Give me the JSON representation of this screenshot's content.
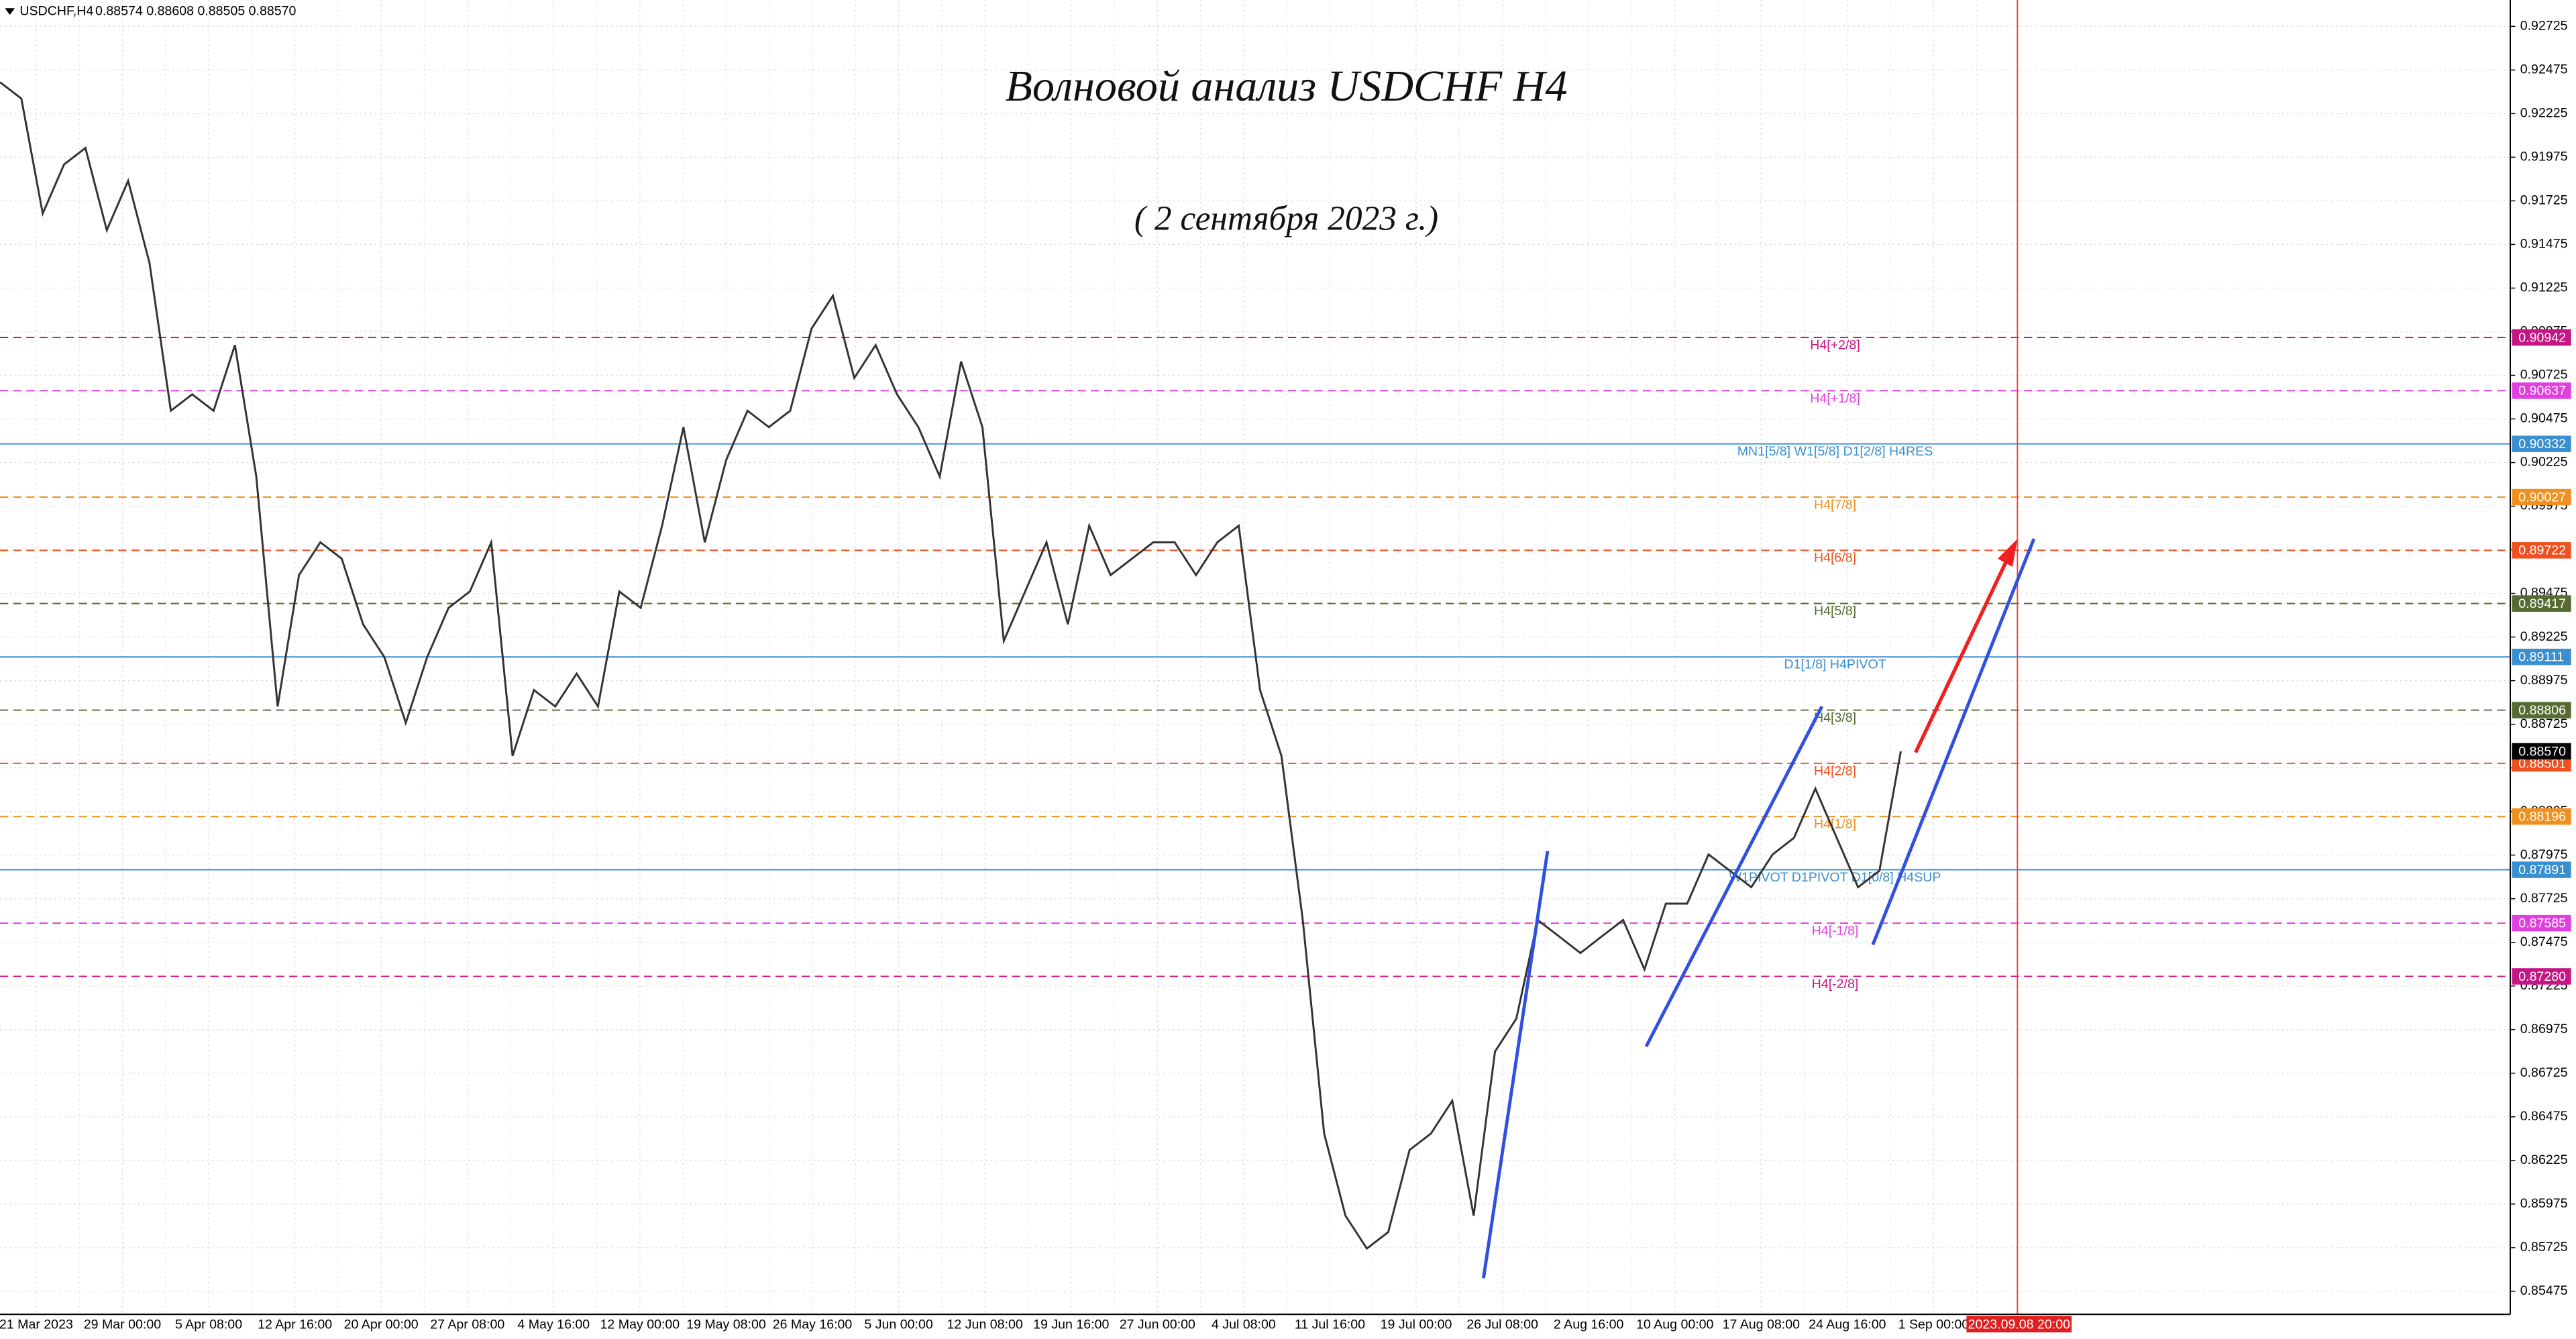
{
  "chart_data": {
    "type": "line",
    "symbol": "USDCHF,H4",
    "quote": "0.88574 0.88608 0.88505 0.88570",
    "title": "Волновой анализ USDCHF H4",
    "subtitle": "( 2 сентября 2023 г.)",
    "color": "#333333",
    "values": [
      0.92405,
      0.92311,
      0.91652,
      0.91934,
      0.92028,
      0.91557,
      0.9184,
      0.91369,
      0.90522,
      0.90616,
      0.90522,
      0.90898,
      0.90145,
      0.88827,
      0.8958,
      0.89768,
      0.89674,
      0.89298,
      0.89109,
      0.88733,
      0.89109,
      0.89392,
      0.89486,
      0.89768,
      0.88544,
      0.88921,
      0.88827,
      0.89015,
      0.88827,
      0.89486,
      0.89392,
      0.89863,
      0.90428,
      0.89768,
      0.90239,
      0.90522,
      0.90428,
      0.90522,
      0.90993,
      0.91181,
      0.9071,
      0.90898,
      0.90616,
      0.90428,
      0.90145,
      0.90804,
      0.90428,
      0.89203,
      0.89486,
      0.89768,
      0.89298,
      0.89863,
      0.8958,
      0.89674,
      0.89768,
      0.89768,
      0.8958,
      0.89768,
      0.89863,
      0.88921,
      0.88544,
      0.87603,
      0.86379,
      0.85908,
      0.8572,
      0.85814,
      0.86285,
      0.86379,
      0.86567,
      0.85908,
      0.86849,
      0.87038,
      0.87603,
      0.87509,
      0.87414,
      0.87509,
      0.87603,
      0.8732,
      0.87697,
      0.87697,
      0.87979,
      0.87885,
      0.87791,
      0.87979,
      0.88074,
      0.88356,
      0.88074,
      0.87791,
      0.87885,
      0.8857
    ],
    "xlabels": [
      "21 Mar 2023",
      "29 Mar 00:00",
      "5 Apr 08:00",
      "12 Apr 16:00",
      "20 Apr 00:00",
      "27 Apr 08:00",
      "4 May 16:00",
      "12 May 00:00",
      "19 May 08:00",
      "26 May 16:00",
      "5 Jun 00:00",
      "12 Jun 08:00",
      "19 Jun 16:00",
      "27 Jun 00:00",
      "4 Jul 08:00",
      "11 Jul 16:00",
      "19 Jul 00:00",
      "26 Jul 08:00",
      "2 Aug 16:00",
      "10 Aug 00:00",
      "17 Aug 08:00",
      "24 Aug 16:00",
      "1 Sep 00:00"
    ],
    "cursor_time": "2023.09.08 20:00",
    "ylim": [
      0.85343,
      0.92876
    ],
    "yticks": [
      0.92725,
      0.92475,
      0.92225,
      0.91975,
      0.91725,
      0.91475,
      0.91225,
      0.90975,
      0.90725,
      0.90475,
      0.90225,
      0.89975,
      0.89725,
      0.89475,
      0.89225,
      0.88975,
      0.88725,
      0.88475,
      0.88225,
      0.87975,
      0.87725,
      0.87475,
      0.87225,
      0.86975,
      0.86725,
      0.86475,
      0.86225,
      0.85975,
      0.85725,
      0.85475
    ],
    "grid": true,
    "levels": [
      {
        "value": 0.90942,
        "label": "H4[+2/8]",
        "color": "#c71585",
        "style": "dash"
      },
      {
        "value": 0.90637,
        "label": "H4[+1/8]",
        "color": "#e040e0",
        "style": "dash"
      },
      {
        "value": 0.90332,
        "label": "MN1[5/8] W1[5/8] D1[2/8] H4RES",
        "color": "#3a8fd0",
        "style": "solid"
      },
      {
        "value": 0.90027,
        "label": "H4[7/8]",
        "color": "#f0901e",
        "style": "dash"
      },
      {
        "value": 0.89722,
        "label": "H4[6/8]",
        "color": "#f05020",
        "style": "dash"
      },
      {
        "value": 0.89417,
        "label": "H4[5/8]",
        "color": "#556b2f",
        "style": "dash"
      },
      {
        "value": 0.89111,
        "label": "D1[1/8] H4PIVOT",
        "color": "#3a8fd0",
        "style": "solid"
      },
      {
        "value": 0.88806,
        "label": "H4[3/8]",
        "color": "#556b2f",
        "style": "dash"
      },
      {
        "value": 0.88501,
        "label": "H4[2/8]",
        "color": "#f05020",
        "style": "dash"
      },
      {
        "value": 0.88196,
        "label": "H4[1/8]",
        "color": "#f0901e",
        "style": "dash"
      },
      {
        "value": 0.87891,
        "label": "W1PIVOT D1PIVOT D1[0/8] H4SUP",
        "color": "#3a8fd0",
        "style": "solid"
      },
      {
        "value": 0.87585,
        "label": "H4[-1/8]",
        "color": "#e040e0",
        "style": "dash"
      },
      {
        "value": 0.8728,
        "value_label": "0.87280",
        "label": "H4[-2/8]",
        "color": "#c71585",
        "style": "dash"
      }
    ],
    "current_price": {
      "value": 0.8857,
      "label": "0.88570"
    }
  }
}
